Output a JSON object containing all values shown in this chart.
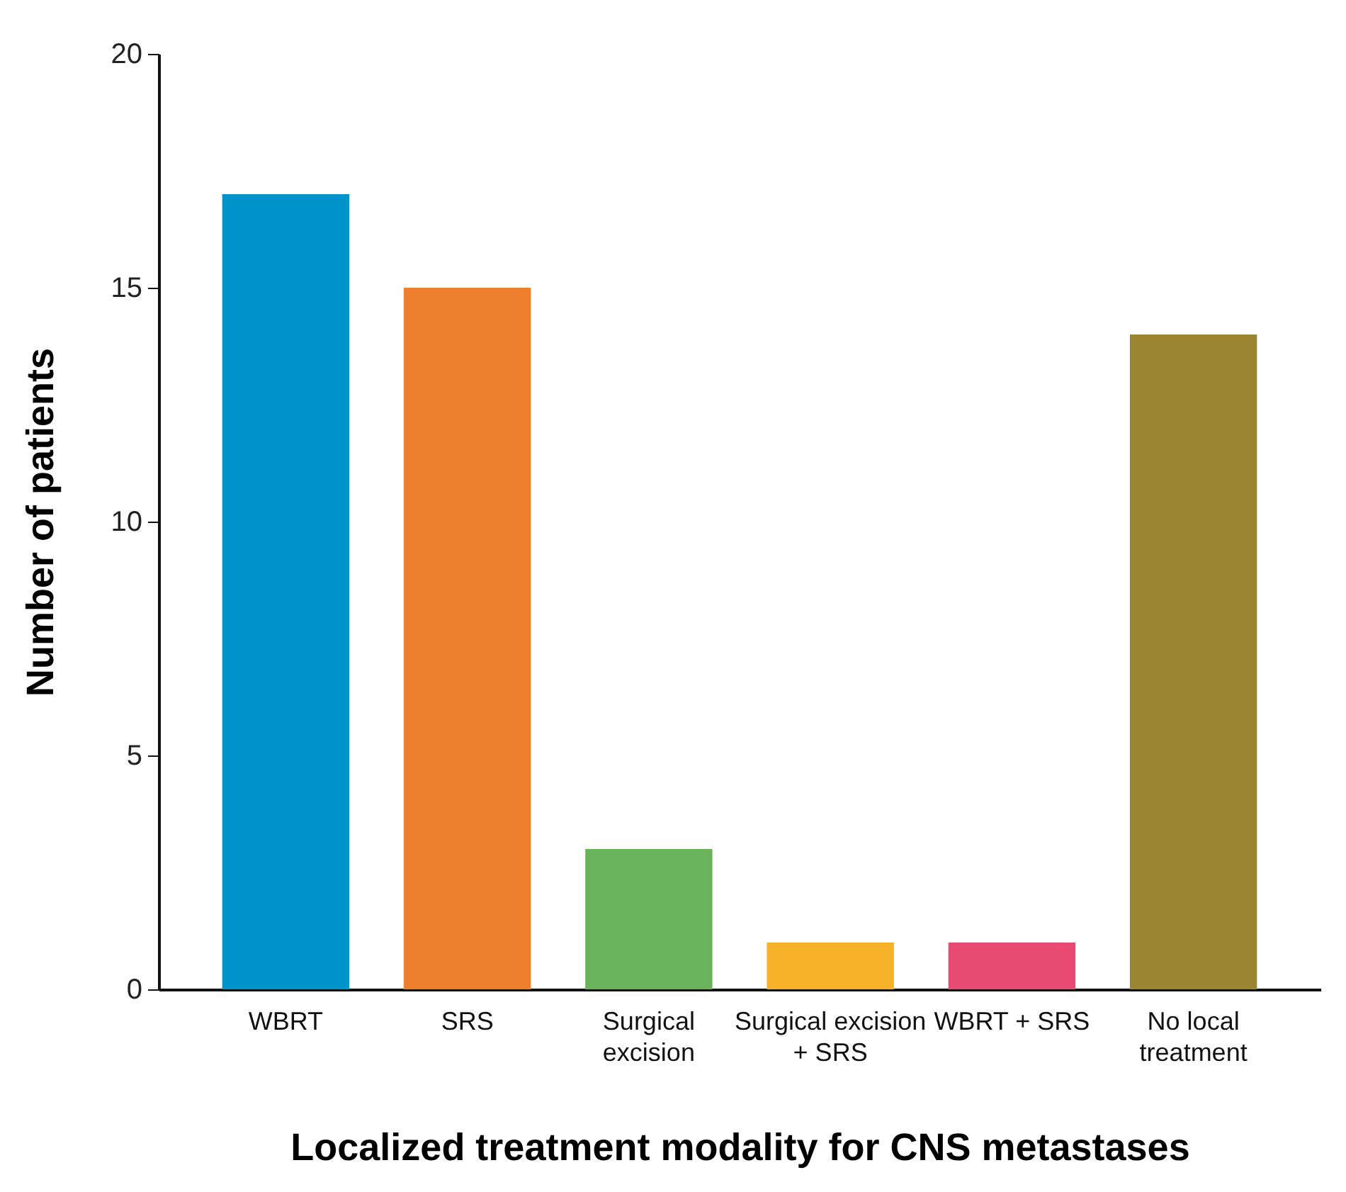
{
  "chart_data": {
    "type": "bar",
    "xlabel": "Localized treatment modality for CNS metastases",
    "ylabel": "Number of patients",
    "categories": [
      "WBRT",
      "SRS",
      "Surgical\nexcision",
      "Surgical excision\n+ SRS",
      "WBRT + SRS",
      "No local\ntreatment"
    ],
    "values": [
      17,
      15,
      3,
      1,
      1,
      14
    ],
    "colors": [
      "#0093c9",
      "#ee7f2d",
      "#6ab35a",
      "#f7b22a",
      "#e84a72",
      "#9a8630"
    ],
    "ylim": [
      0,
      20
    ],
    "yticks": [
      0,
      5,
      10,
      15,
      20
    ],
    "grid": false
  }
}
